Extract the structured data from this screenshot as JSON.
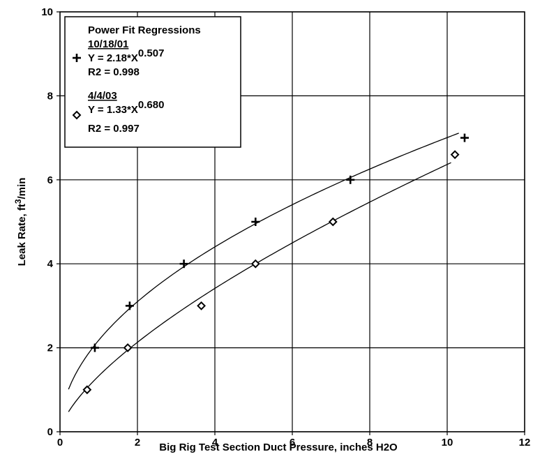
{
  "chart_data": {
    "type": "scatter",
    "xlabel": "Big Rig Test Section Duct Pressure, inches H2O",
    "ylabel_main": "Leak Rate, ft",
    "ylabel_sup": "3",
    "ylabel_tail": "/min",
    "xlim": [
      0,
      12
    ],
    "ylim": [
      0,
      10
    ],
    "xticks": [
      "0",
      "2",
      "4",
      "6",
      "8",
      "10",
      "12"
    ],
    "yticks": [
      "0",
      "2",
      "4",
      "6",
      "8",
      "10"
    ],
    "grid": true,
    "legend": {
      "title": "Power Fit Regressions",
      "placement": "top-left",
      "entries": [
        {
          "label": "10/18/01",
          "marker": "plus",
          "eq_main": "Y = 2.18*X",
          "eq_exp": "0.507",
          "r2": "R2 = 0.998"
        },
        {
          "label": "4/4/03",
          "marker": "diamond",
          "eq_main": "Y = 1.33*X",
          "eq_exp": "0.680",
          "r2": "R2 = 0.997"
        }
      ]
    },
    "series": [
      {
        "name": "10/18/01",
        "marker": "plus",
        "x": [
          0.9,
          1.8,
          3.2,
          5.05,
          7.5,
          10.45
        ],
        "y": [
          2,
          3,
          4,
          5,
          6,
          7
        ],
        "fit": {
          "a": 2.18,
          "b": 0.507,
          "x_range": [
            0.22,
            10.3
          ]
        }
      },
      {
        "name": "4/4/03",
        "marker": "diamond",
        "x": [
          0.7,
          1.75,
          3.65,
          5.05,
          7.05,
          10.2
        ],
        "y": [
          1,
          2,
          3,
          4,
          5,
          6.6
        ],
        "fit": {
          "a": 1.33,
          "b": 0.68,
          "x_range": [
            0.22,
            10.1
          ]
        }
      }
    ]
  }
}
